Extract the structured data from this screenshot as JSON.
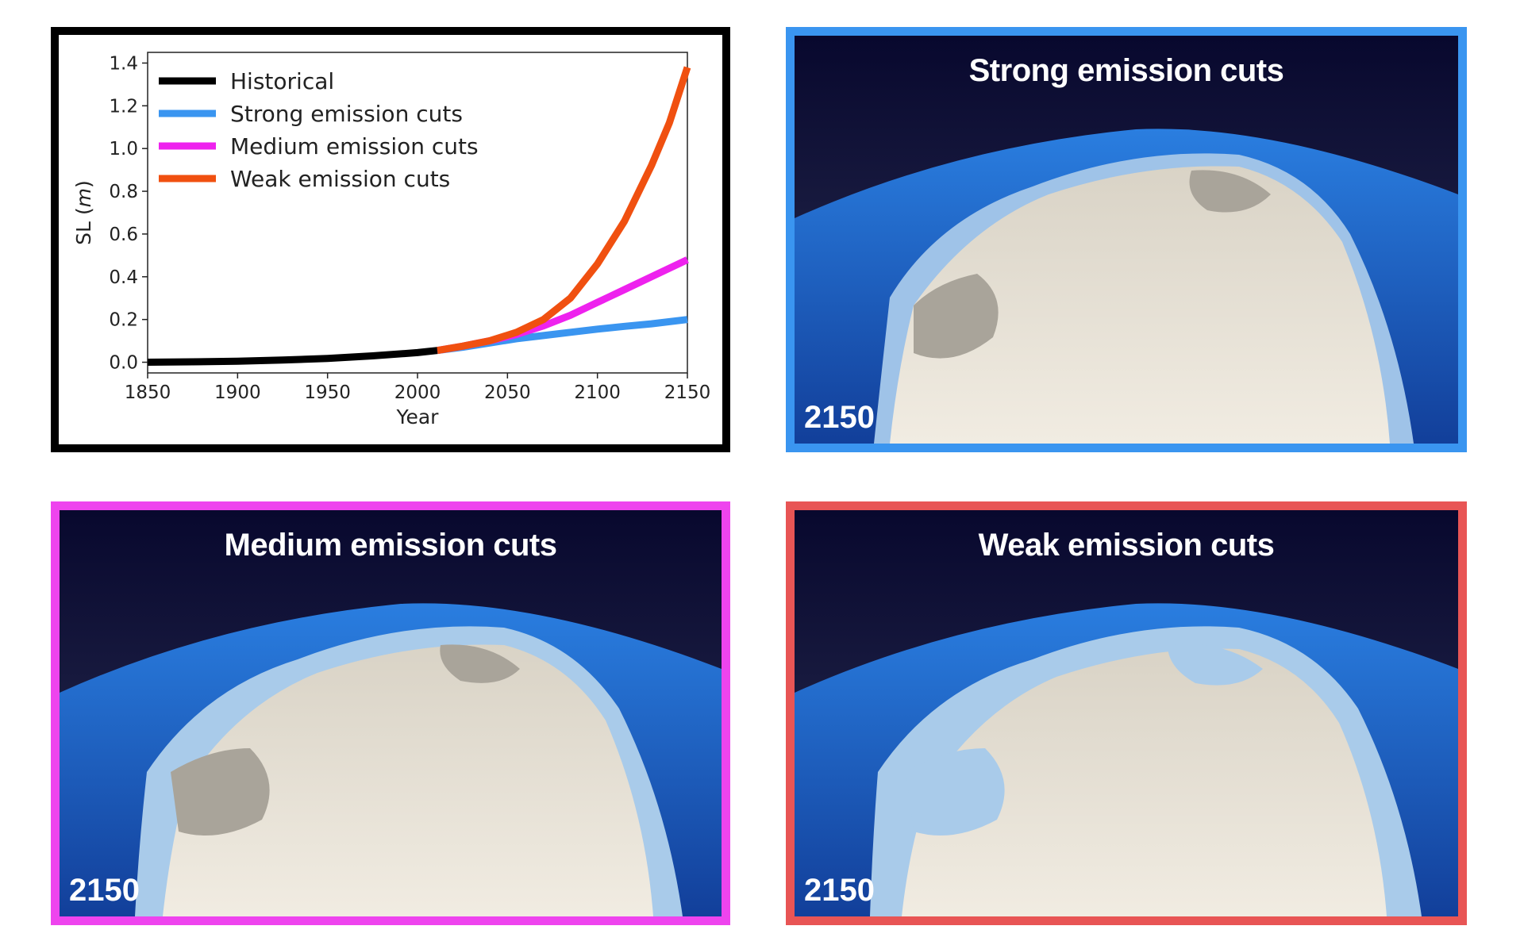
{
  "chart_data": {
    "type": "line",
    "xlabel": "Year",
    "ylabel": "SL (m)",
    "ylabel_parts": {
      "name": "SL",
      "unit": "m"
    },
    "xlim": [
      1850,
      2150
    ],
    "ylim": [
      -0.05,
      1.45
    ],
    "x_ticks": [
      1850,
      1900,
      1950,
      2000,
      2050,
      2100,
      2150
    ],
    "y_ticks": [
      "0.0",
      "0.2",
      "0.4",
      "0.6",
      "0.8",
      "1.0",
      "1.2",
      "1.4"
    ],
    "legend_position": "top-left",
    "grid": false,
    "series": [
      {
        "name": "Historical",
        "color": "#000000",
        "x": [
          1850,
          1875,
          1900,
          1925,
          1950,
          1975,
          2000,
          2011
        ],
        "y": [
          0.0,
          0.002,
          0.005,
          0.01,
          0.018,
          0.03,
          0.045,
          0.055
        ]
      },
      {
        "name": "Strong emission cuts",
        "color": "#3a95f0",
        "x": [
          2011,
          2025,
          2040,
          2055,
          2070,
          2085,
          2100,
          2115,
          2130,
          2150
        ],
        "y": [
          0.055,
          0.07,
          0.09,
          0.11,
          0.125,
          0.14,
          0.155,
          0.168,
          0.18,
          0.2
        ]
      },
      {
        "name": "Medium emission cuts",
        "color": "#ee22ee",
        "x": [
          2011,
          2025,
          2040,
          2055,
          2070,
          2085,
          2100,
          2115,
          2130,
          2150
        ],
        "y": [
          0.055,
          0.075,
          0.1,
          0.13,
          0.17,
          0.22,
          0.28,
          0.34,
          0.4,
          0.48
        ]
      },
      {
        "name": "Weak emission cuts",
        "color": "#f05010",
        "x": [
          2011,
          2025,
          2040,
          2055,
          2070,
          2085,
          2100,
          2115,
          2130,
          2140,
          2150
        ],
        "y": [
          0.055,
          0.075,
          0.1,
          0.14,
          0.2,
          0.3,
          0.46,
          0.66,
          0.92,
          1.12,
          1.38
        ]
      }
    ]
  },
  "panels": {
    "strong": {
      "title": "Strong emission cuts",
      "year": "2150",
      "border_color": "#3a95f0"
    },
    "medium": {
      "title": "Medium emission cuts",
      "year": "2150",
      "border_color": "#ee44ee"
    },
    "weak": {
      "title": "Weak emission cuts",
      "year": "2150",
      "border_color": "#e85555"
    }
  },
  "colors": {
    "sky_top": "#0b0b33",
    "sky_bottom": "#2a2f52",
    "ocean": "#1f63c8",
    "ice_surface": "#e8e2d8",
    "grounded_loss": "#a9a49a",
    "ice_shelf": "#a9cbea"
  }
}
